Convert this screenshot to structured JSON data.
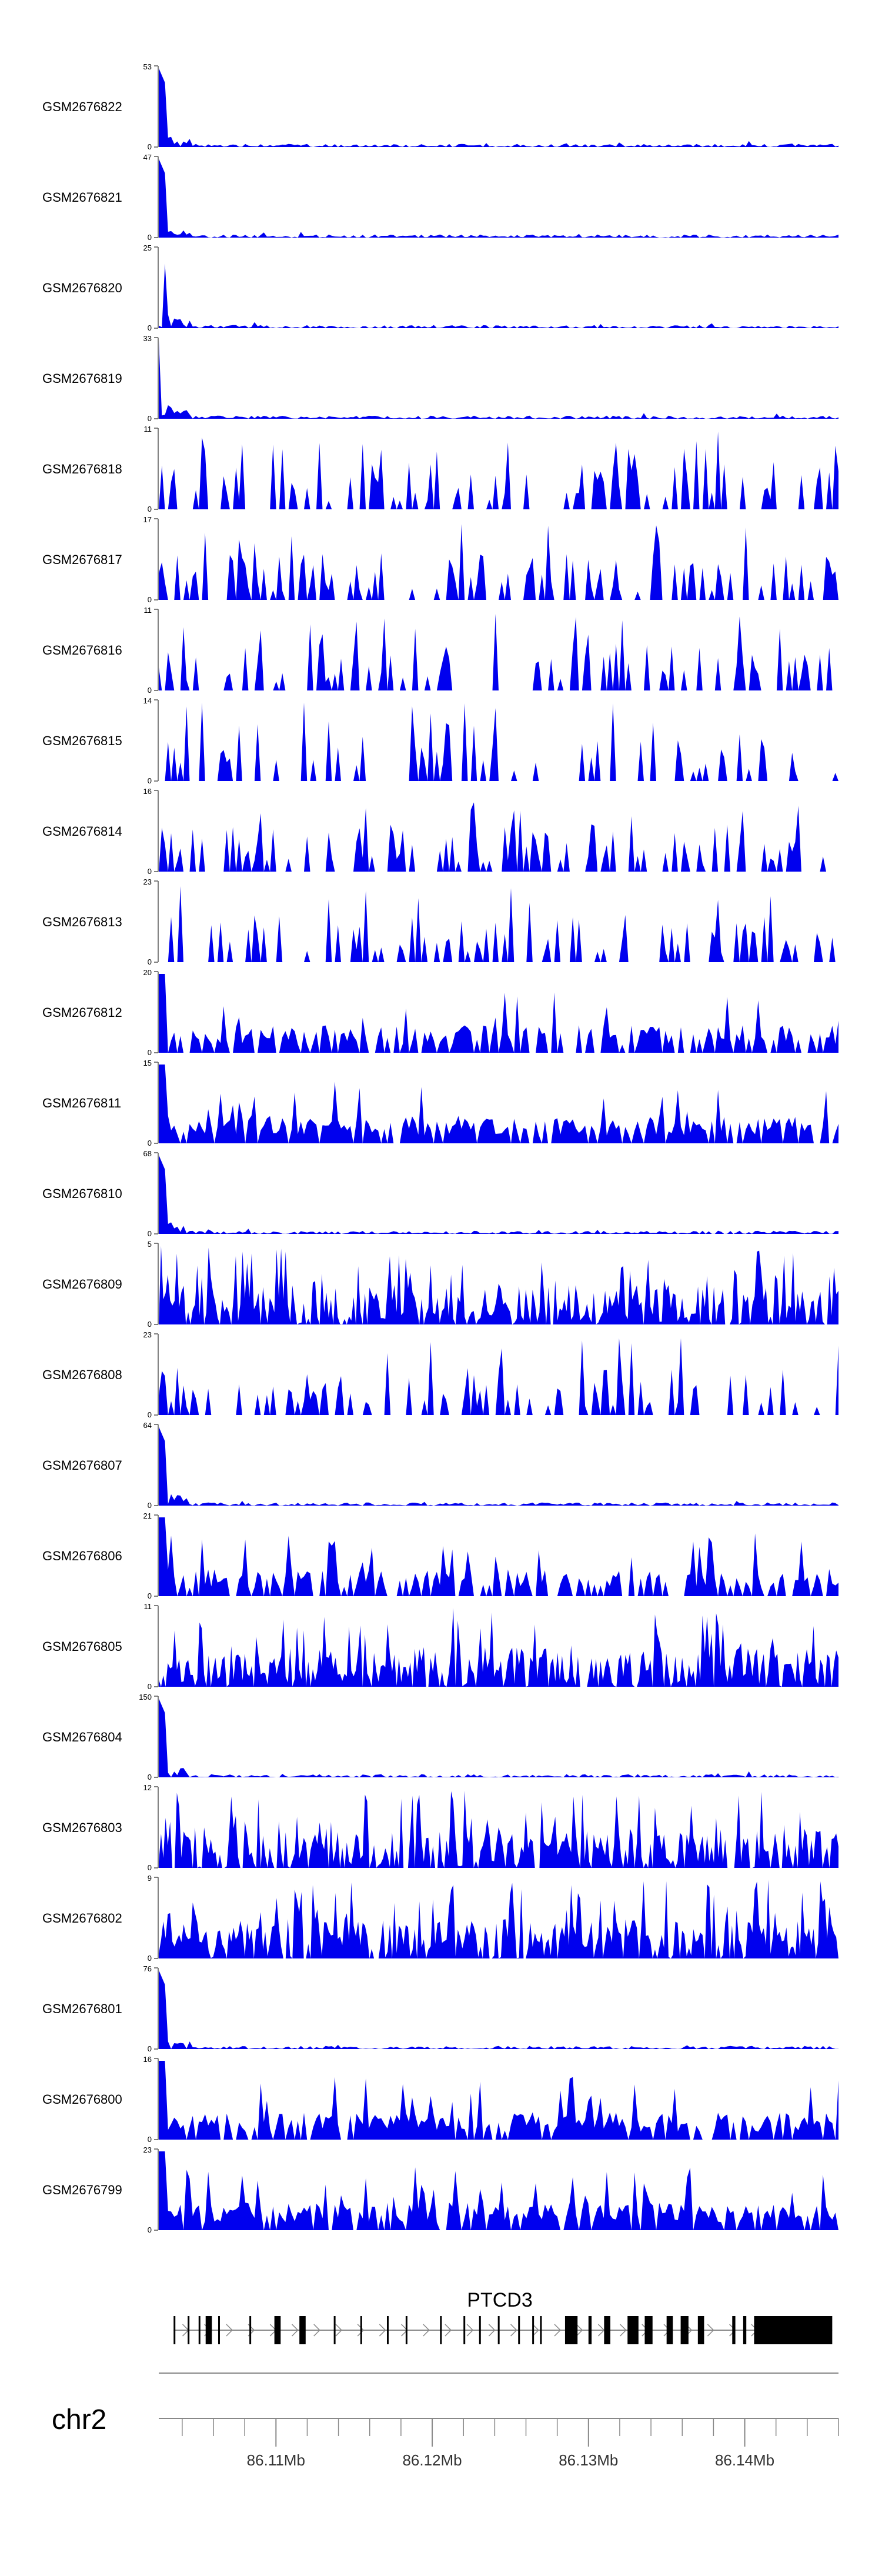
{
  "chart_data": {
    "type": "area",
    "tracks_ylabel": "",
    "fill_color": "#0000ee",
    "tracks": [
      {
        "name": "GSM2676822",
        "ymax": 53,
        "ymin": 0,
        "seed": 11,
        "profile": "spike",
        "density": 0.8
      },
      {
        "name": "GSM2676821",
        "ymax": 47,
        "ymin": 0,
        "seed": 12,
        "profile": "spike",
        "density": 0.8
      },
      {
        "name": "GSM2676820",
        "ymax": 25,
        "ymin": 0,
        "seed": 13,
        "profile": "spike",
        "density": 0.85
      },
      {
        "name": "GSM2676819",
        "ymax": 33,
        "ymin": 0,
        "seed": 14,
        "profile": "spike",
        "density": 0.85
      },
      {
        "name": "GSM2676818",
        "ymax": 11,
        "ymin": 0,
        "seed": 15,
        "profile": "sparse",
        "density": 0.3
      },
      {
        "name": "GSM2676817",
        "ymax": 17,
        "ymin": 0,
        "seed": 16,
        "profile": "sparse",
        "density": 0.35
      },
      {
        "name": "GSM2676816",
        "ymax": 11,
        "ymin": 0,
        "seed": 17,
        "profile": "sparse",
        "density": 0.3
      },
      {
        "name": "GSM2676815",
        "ymax": 14,
        "ymin": 0,
        "seed": 18,
        "profile": "sparse",
        "density": 0.22
      },
      {
        "name": "GSM2676814",
        "ymax": 16,
        "ymin": 0,
        "seed": 19,
        "profile": "sparse",
        "density": 0.35
      },
      {
        "name": "GSM2676813",
        "ymax": 23,
        "ymin": 0,
        "seed": 20,
        "profile": "sparse",
        "density": 0.25
      },
      {
        "name": "GSM2676812",
        "ymax": 20,
        "ymin": 0,
        "seed": 21,
        "profile": "medium",
        "density": 0.6
      },
      {
        "name": "GSM2676811",
        "ymax": 15,
        "ymin": 0,
        "seed": 22,
        "profile": "medium",
        "density": 0.7
      },
      {
        "name": "GSM2676810",
        "ymax": 68,
        "ymin": 0,
        "seed": 23,
        "profile": "spike",
        "density": 0.8
      },
      {
        "name": "GSM2676809",
        "ymax": 5,
        "ymin": 0,
        "seed": 24,
        "profile": "dense",
        "density": 0.9
      },
      {
        "name": "GSM2676808",
        "ymax": 23,
        "ymin": 0,
        "seed": 25,
        "profile": "sparse",
        "density": 0.35
      },
      {
        "name": "GSM2676807",
        "ymax": 64,
        "ymin": 0,
        "seed": 26,
        "profile": "spike",
        "density": 0.8
      },
      {
        "name": "GSM2676806",
        "ymax": 21,
        "ymin": 0,
        "seed": 27,
        "profile": "medium",
        "density": 0.6
      },
      {
        "name": "GSM2676805",
        "ymax": 11,
        "ymin": 0,
        "seed": 28,
        "profile": "dense",
        "density": 0.9
      },
      {
        "name": "GSM2676804",
        "ymax": 150,
        "ymin": 0,
        "seed": 29,
        "profile": "spike",
        "density": 0.8
      },
      {
        "name": "GSM2676803",
        "ymax": 12,
        "ymin": 0,
        "seed": 30,
        "profile": "dense",
        "density": 0.85
      },
      {
        "name": "GSM2676802",
        "ymax": 9,
        "ymin": 0,
        "seed": 31,
        "profile": "dense",
        "density": 0.85
      },
      {
        "name": "GSM2676801",
        "ymax": 76,
        "ymin": 0,
        "seed": 32,
        "profile": "spike",
        "density": 0.8
      },
      {
        "name": "GSM2676800",
        "ymax": 16,
        "ymin": 0,
        "seed": 33,
        "profile": "medium",
        "density": 0.75
      },
      {
        "name": "GSM2676799",
        "ymax": 23,
        "ymin": 0,
        "seed": 34,
        "profile": "medium",
        "density": 0.75
      }
    ],
    "gene": {
      "name": "PTCD3",
      "exons": [
        [
          86103450,
          86103500
        ],
        [
          86104350,
          86104400
        ],
        [
          86105050,
          86105100
        ],
        [
          86105500,
          86105900
        ],
        [
          86106300,
          86106400
        ],
        [
          86108300,
          86108380
        ],
        [
          86109900,
          86110300
        ],
        [
          86111500,
          86111900
        ],
        [
          86113700,
          86113800
        ],
        [
          86115400,
          86115480
        ],
        [
          86117100,
          86117180
        ],
        [
          86118300,
          86118380
        ],
        [
          86120500,
          86120580
        ],
        [
          86122000,
          86122080
        ],
        [
          86123000,
          86123080
        ],
        [
          86124200,
          86124280
        ],
        [
          86125500,
          86125580
        ],
        [
          86126400,
          86126480
        ],
        [
          86126900,
          86126980
        ],
        [
          86128500,
          86129300
        ],
        [
          86130000,
          86130200
        ],
        [
          86131000,
          86131400
        ],
        [
          86132500,
          86133200
        ],
        [
          86133600,
          86134100
        ],
        [
          86135000,
          86135400
        ],
        [
          86135900,
          86136400
        ],
        [
          86137000,
          86137400
        ],
        [
          86139200,
          86139400
        ],
        [
          86139900,
          86140100
        ],
        [
          86140600,
          86145600
        ]
      ],
      "strand": "+"
    },
    "xaxis": {
      "chromosome": "chr2",
      "xlim": [
        86102500,
        86146000
      ],
      "major_ticks": [
        86110000,
        86120000,
        86130000,
        86140000
      ],
      "tick_labels": [
        "86.11Mb",
        "86.12Mb",
        "86.13Mb",
        "86.14Mb"
      ],
      "minor_step": 2000
    }
  }
}
